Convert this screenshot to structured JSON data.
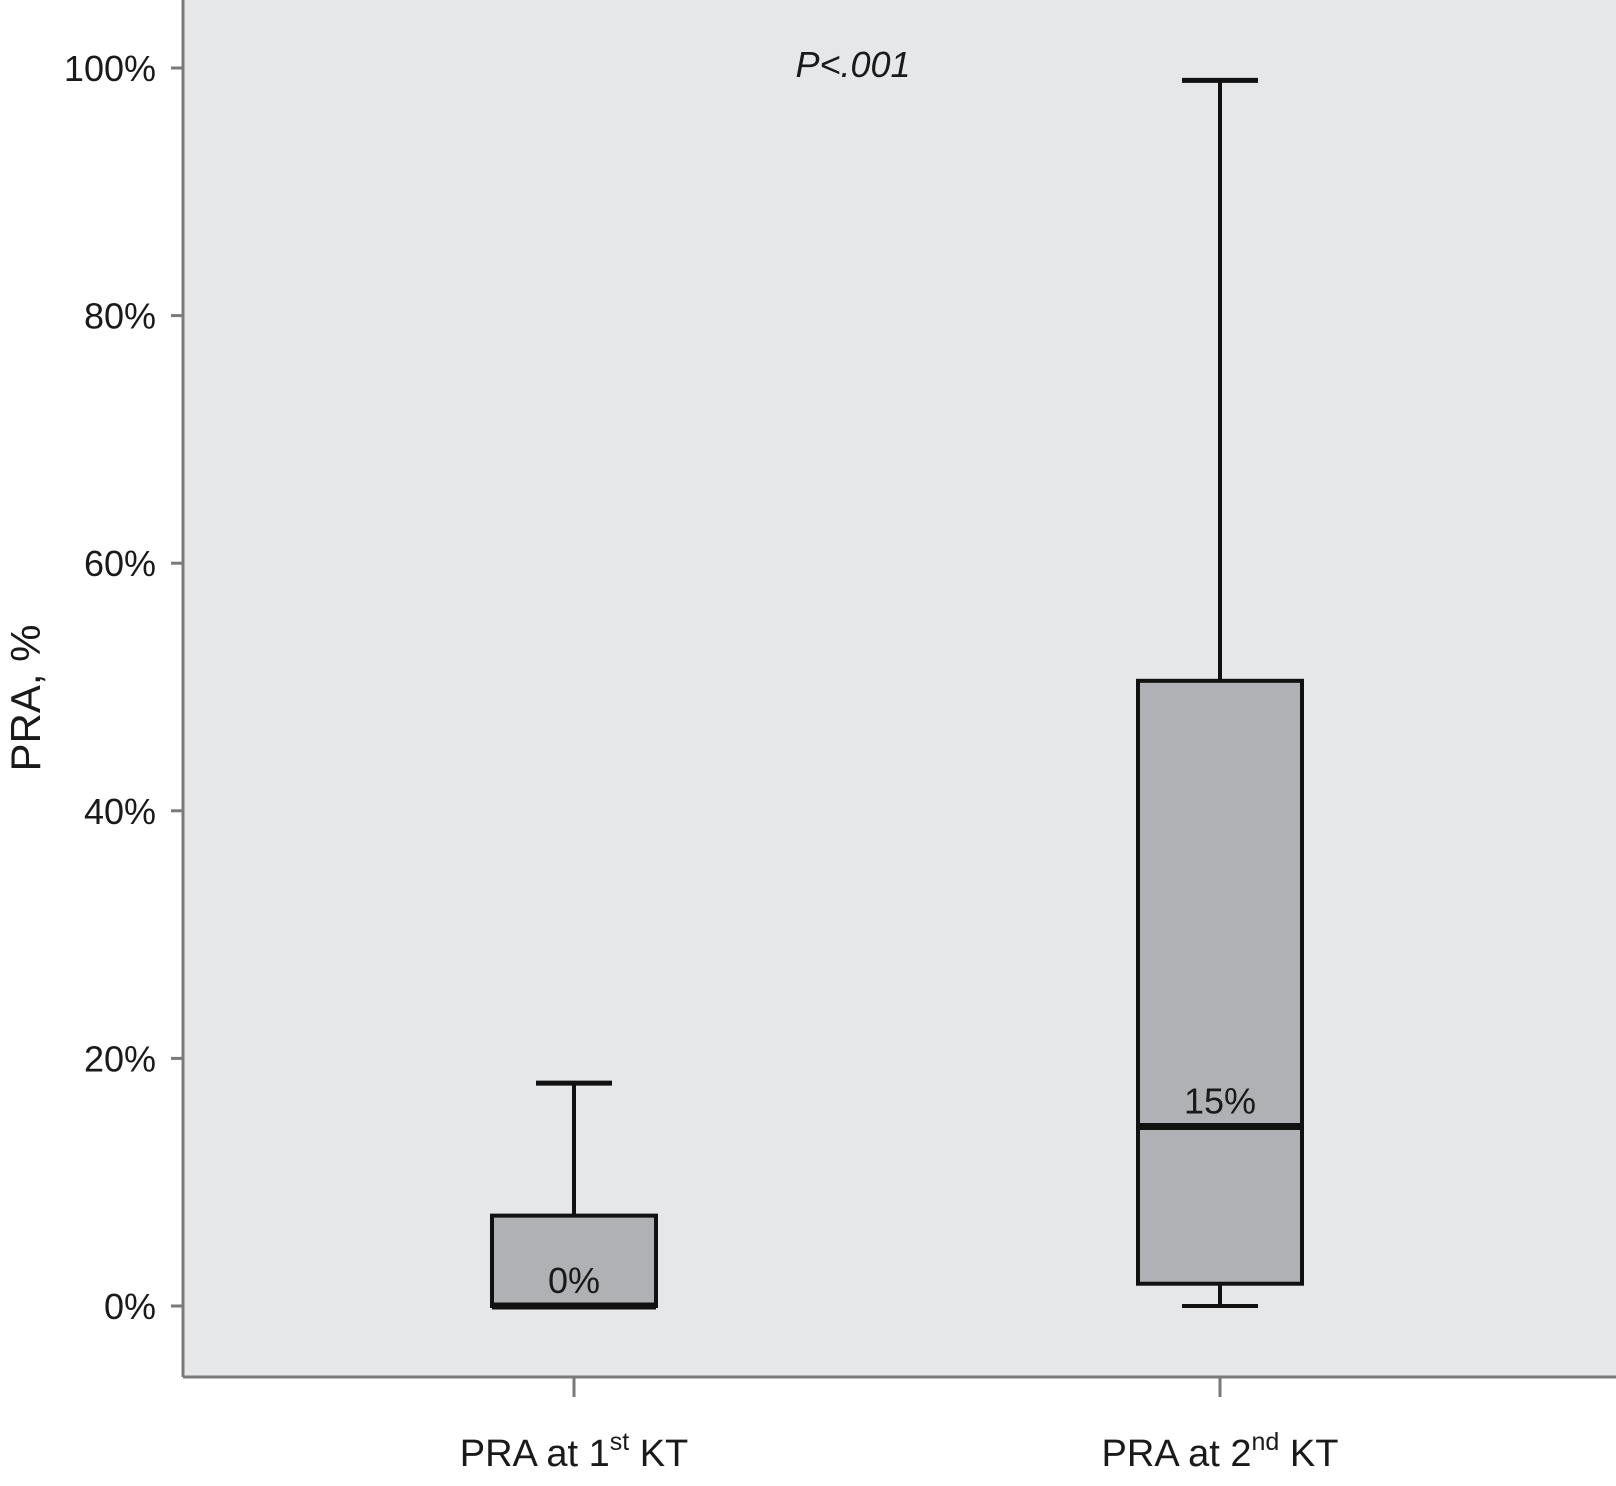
{
  "chart_data": {
    "type": "box",
    "title": "",
    "annotation": "P<.001",
    "xlabel": "",
    "ylabel": "PRA, %",
    "ylim": [
      -6,
      110
    ],
    "yticks": [
      0,
      20,
      40,
      60,
      80,
      100
    ],
    "ytick_labels": [
      "0%",
      "20%",
      "40%",
      "60%",
      "80%",
      "100%"
    ],
    "grid": false,
    "plot_background": "#e6e7e9",
    "box_fill": "#b0b1b4",
    "line_color": "#111111",
    "categories": [
      {
        "pre": "PRA at 1",
        "sup": "st",
        "post": " KT"
      },
      {
        "pre": "PRA at 2",
        "sup": "nd",
        "post": " KT"
      }
    ],
    "boxes": [
      {
        "whisker_low": 0,
        "q1": 0,
        "median": 0,
        "q3": 7.3,
        "whisker_high": 18,
        "median_label": "0%"
      },
      {
        "whisker_low": 0,
        "q1": 1.8,
        "median": 14.5,
        "q3": 50.5,
        "whisker_high": 99,
        "median_label": "15%"
      }
    ]
  }
}
